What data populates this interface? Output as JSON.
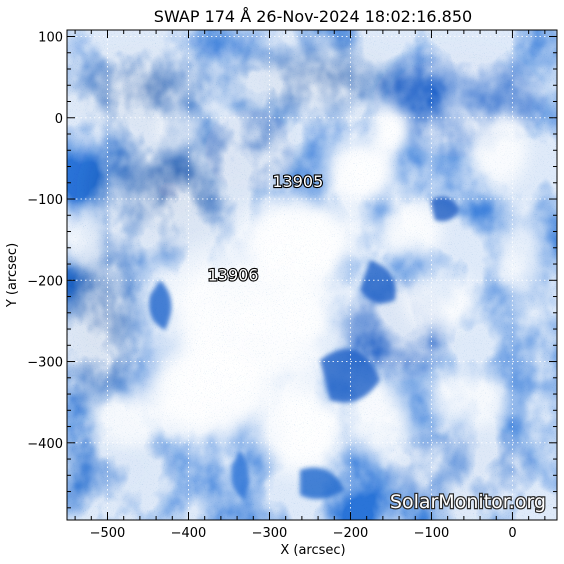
{
  "title": "SWAP 174 Å 26-Nov-2024 18:02:16.850",
  "axes": {
    "xlabel": "X (arcsec)",
    "ylabel": "Y (arcsec)",
    "xlim": [
      -550,
      55
    ],
    "ylim": [
      -495,
      108
    ],
    "xticks": [
      -500,
      -400,
      -300,
      -200,
      -100,
      0
    ],
    "yticks": [
      100,
      0,
      -100,
      -200,
      -300,
      -400
    ],
    "x_tick_labels": [
      "−500",
      "−400",
      "−300",
      "−200",
      "−100",
      "0"
    ],
    "y_tick_labels": [
      "100",
      "0",
      "−100",
      "−200",
      "−300",
      "−400"
    ]
  },
  "regions": [
    {
      "id": "13905",
      "x": -265,
      "y": -85
    },
    {
      "id": "13906",
      "x": -345,
      "y": -200
    }
  ],
  "watermark": "SolarMonitor.org",
  "colors": {
    "frame": "#000000",
    "image_dark": "#0a3f9c",
    "image_mid": "#2f7fe0",
    "image_light": "#ffffff",
    "grid": "#ffffff"
  }
}
